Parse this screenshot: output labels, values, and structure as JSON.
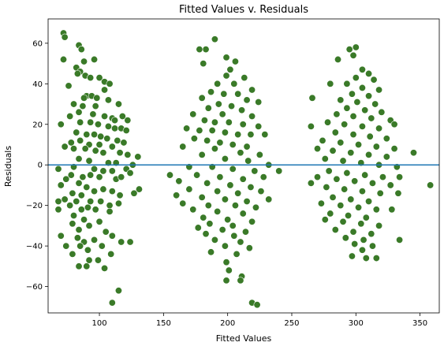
{
  "chart_data": {
    "type": "scatter",
    "title": "Fitted Values v. Residuals",
    "xlabel": "Fitted Values",
    "ylabel": "Residuals",
    "xlim": [
      60,
      365
    ],
    "ylim": [
      -73,
      72
    ],
    "xticks": [
      100,
      150,
      200,
      250,
      300,
      350
    ],
    "yticks": [
      -60,
      -40,
      -20,
      0,
      20,
      40,
      60
    ],
    "grid": false,
    "reference_line": {
      "y": 0,
      "color": "#1f77b4"
    },
    "point_color": "#3a7a28",
    "point_edge": "#ffffff",
    "series": [
      {
        "points": [
          [
            72,
            65
          ],
          [
            73,
            63
          ],
          [
            84,
            59
          ],
          [
            86,
            57
          ],
          [
            72,
            52
          ],
          [
            88,
            51
          ],
          [
            96,
            52
          ],
          [
            82,
            48
          ],
          [
            85,
            46
          ],
          [
            83,
            45
          ],
          [
            89,
            44
          ],
          [
            93,
            43
          ],
          [
            100,
            43
          ],
          [
            104,
            41
          ],
          [
            108,
            40
          ],
          [
            76,
            39
          ],
          [
            104,
            37
          ],
          [
            90,
            34
          ],
          [
            94,
            34
          ],
          [
            98,
            33
          ],
          [
            88,
            33
          ],
          [
            107,
            32
          ],
          [
            80,
            30
          ],
          [
            115,
            30
          ],
          [
            87,
            29
          ],
          [
            97,
            29
          ],
          [
            84,
            26
          ],
          [
            95,
            25
          ],
          [
            77,
            24
          ],
          [
            104,
            24
          ],
          [
            118,
            24
          ],
          [
            110,
            23
          ],
          [
            112,
            22
          ],
          [
            122,
            22
          ],
          [
            85,
            21
          ],
          [
            93,
            21
          ],
          [
            99,
            20
          ],
          [
            70,
            20
          ],
          [
            107,
            19
          ],
          [
            112,
            18
          ],
          [
            117,
            18
          ],
          [
            121,
            17
          ],
          [
            82,
            16
          ],
          [
            90,
            15
          ],
          [
            96,
            15
          ],
          [
            101,
            14
          ],
          [
            106,
            13
          ],
          [
            114,
            12
          ],
          [
            119,
            11
          ],
          [
            85,
            12
          ],
          [
            78,
            11
          ],
          [
            92,
            10
          ],
          [
            100,
            10
          ],
          [
            110,
            9
          ],
          [
            73,
            9
          ],
          [
            80,
            8
          ],
          [
            89,
            8
          ],
          [
            97,
            7
          ],
          [
            103,
            6
          ],
          [
            116,
            6
          ],
          [
            122,
            5
          ],
          [
            130,
            4
          ],
          [
            84,
            3
          ],
          [
            92,
            2
          ],
          [
            107,
            1
          ],
          [
            113,
            1
          ],
          [
            126,
            0
          ],
          [
            68,
            -2
          ],
          [
            80,
            -1
          ],
          [
            96,
            -2
          ],
          [
            103,
            -3
          ],
          [
            110,
            -3
          ],
          [
            121,
            -2
          ],
          [
            124,
            -4
          ],
          [
            78,
            -5
          ],
          [
            87,
            -6
          ],
          [
            93,
            -5
          ],
          [
            100,
            -6
          ],
          [
            113,
            -7
          ],
          [
            117,
            -6
          ],
          [
            74,
            -7
          ],
          [
            84,
            -9
          ],
          [
            70,
            -10
          ],
          [
            90,
            -11
          ],
          [
            103,
            -12
          ],
          [
            96,
            -13
          ],
          [
            110,
            -13
          ],
          [
            131,
            -12
          ],
          [
            79,
            -14
          ],
          [
            86,
            -15
          ],
          [
            116,
            -15
          ],
          [
            127,
            -14
          ],
          [
            73,
            -17
          ],
          [
            82,
            -18
          ],
          [
            93,
            -18
          ],
          [
            101,
            -18
          ],
          [
            68,
            -18
          ],
          [
            115,
            -19
          ],
          [
            77,
            -20
          ],
          [
            91,
            -21
          ],
          [
            108,
            -20
          ],
          [
            68,
            -22
          ],
          [
            86,
            -22
          ],
          [
            97,
            -22
          ],
          [
            108,
            -23
          ],
          [
            80,
            -25
          ],
          [
            88,
            -27
          ],
          [
            100,
            -28
          ],
          [
            79,
            -29
          ],
          [
            84,
            -32
          ],
          [
            92,
            -30
          ],
          [
            105,
            -33
          ],
          [
            70,
            -35
          ],
          [
            83,
            -36
          ],
          [
            110,
            -35
          ],
          [
            96,
            -37
          ],
          [
            88,
            -38
          ],
          [
            117,
            -38
          ],
          [
            124,
            -38
          ],
          [
            74,
            -40
          ],
          [
            85,
            -40
          ],
          [
            102,
            -40
          ],
          [
            91,
            -42
          ],
          [
            79,
            -44
          ],
          [
            109,
            -44
          ],
          [
            92,
            -47
          ],
          [
            99,
            -47
          ],
          [
            84,
            -50
          ],
          [
            90,
            -50
          ],
          [
            104,
            -51
          ],
          [
            115,
            -62
          ],
          [
            110,
            -68
          ],
          [
            190,
            62
          ],
          [
            183,
            57
          ],
          [
            178,
            57
          ],
          [
            199,
            53
          ],
          [
            206,
            51
          ],
          [
            181,
            50
          ],
          [
            202,
            47
          ],
          [
            199,
            44
          ],
          [
            213,
            43
          ],
          [
            192,
            40
          ],
          [
            205,
            40
          ],
          [
            219,
            37
          ],
          [
            187,
            36
          ],
          [
            197,
            35
          ],
          [
            208,
            35
          ],
          [
            180,
            33
          ],
          [
            215,
            32
          ],
          [
            224,
            31
          ],
          [
            193,
            30
          ],
          [
            203,
            29
          ],
          [
            185,
            28
          ],
          [
            211,
            27
          ],
          [
            173,
            25
          ],
          [
            196,
            25
          ],
          [
            219,
            24
          ],
          [
            182,
            22
          ],
          [
            190,
            21
          ],
          [
            201,
            21
          ],
          [
            212,
            20
          ],
          [
            224,
            19
          ],
          [
            168,
            18
          ],
          [
            178,
            17
          ],
          [
            188,
            17
          ],
          [
            198,
            16
          ],
          [
            208,
            15
          ],
          [
            218,
            15
          ],
          [
            229,
            15
          ],
          [
            174,
            13
          ],
          [
            184,
            12
          ],
          [
            194,
            11
          ],
          [
            204,
            10
          ],
          [
            215,
            9
          ],
          [
            165,
            9
          ],
          [
            190,
            8
          ],
          [
            210,
            6
          ],
          [
            225,
            5
          ],
          [
            180,
            5
          ],
          [
            198,
            3
          ],
          [
            216,
            2
          ],
          [
            232,
            0
          ],
          [
            170,
            -1
          ],
          [
            188,
            -1
          ],
          [
            204,
            -2
          ],
          [
            221,
            -3
          ],
          [
            240,
            -3
          ],
          [
            155,
            -5
          ],
          [
            176,
            -5
          ],
          [
            194,
            -6
          ],
          [
            212,
            -7
          ],
          [
            228,
            -6
          ],
          [
            162,
            -8
          ],
          [
            184,
            -9
          ],
          [
            202,
            -10
          ],
          [
            218,
            -11
          ],
          [
            170,
            -12
          ],
          [
            192,
            -13
          ],
          [
            208,
            -14
          ],
          [
            226,
            -13
          ],
          [
            160,
            -15
          ],
          [
            180,
            -16
          ],
          [
            198,
            -17
          ],
          [
            215,
            -18
          ],
          [
            232,
            -17
          ],
          [
            165,
            -19
          ],
          [
            185,
            -20
          ],
          [
            206,
            -20
          ],
          [
            222,
            -21
          ],
          [
            173,
            -22
          ],
          [
            192,
            -23
          ],
          [
            212,
            -24
          ],
          [
            181,
            -26
          ],
          [
            200,
            -27
          ],
          [
            219,
            -28
          ],
          [
            186,
            -29
          ],
          [
            204,
            -30
          ],
          [
            177,
            -31
          ],
          [
            196,
            -32
          ],
          [
            214,
            -33
          ],
          [
            183,
            -34
          ],
          [
            205,
            -35
          ],
          [
            190,
            -37
          ],
          [
            210,
            -38
          ],
          [
            198,
            -40
          ],
          [
            217,
            -41
          ],
          [
            187,
            -43
          ],
          [
            207,
            -44
          ],
          [
            199,
            -48
          ],
          [
            201,
            -52
          ],
          [
            211,
            -55
          ],
          [
            199,
            -57
          ],
          [
            210,
            -57
          ],
          [
            219,
            -68
          ],
          [
            223,
            -69
          ],
          [
            300,
            58
          ],
          [
            295,
            57
          ],
          [
            298,
            54
          ],
          [
            286,
            52
          ],
          [
            305,
            47
          ],
          [
            310,
            45
          ],
          [
            300,
            43
          ],
          [
            314,
            42
          ],
          [
            293,
            40
          ],
          [
            280,
            40
          ],
          [
            305,
            38
          ],
          [
            318,
            37
          ],
          [
            297,
            35
          ],
          [
            310,
            34
          ],
          [
            288,
            32
          ],
          [
            266,
            33
          ],
          [
            301,
            31
          ],
          [
            315,
            30
          ],
          [
            293,
            28
          ],
          [
            307,
            27
          ],
          [
            320,
            26
          ],
          [
            285,
            25
          ],
          [
            298,
            24
          ],
          [
            312,
            23
          ],
          [
            327,
            22
          ],
          [
            278,
            21
          ],
          [
            291,
            20
          ],
          [
            305,
            19
          ],
          [
            318,
            18
          ],
          [
            265,
            19
          ],
          [
            284,
            16
          ],
          [
            298,
            15
          ],
          [
            311,
            14
          ],
          [
            324,
            13
          ],
          [
            274,
            12
          ],
          [
            288,
            11
          ],
          [
            302,
            10
          ],
          [
            316,
            9
          ],
          [
            330,
            8
          ],
          [
            270,
            8
          ],
          [
            282,
            7
          ],
          [
            296,
            6
          ],
          [
            310,
            5
          ],
          [
            324,
            4
          ],
          [
            345,
            6
          ],
          [
            276,
            3
          ],
          [
            290,
            2
          ],
          [
            304,
            1
          ],
          [
            318,
            0
          ],
          [
            332,
            -1
          ],
          [
            279,
            -3
          ],
          [
            293,
            -4
          ],
          [
            307,
            -5
          ],
          [
            321,
            -6
          ],
          [
            270,
            -6
          ],
          [
            285,
            -7
          ],
          [
            299,
            -8
          ],
          [
            313,
            -9
          ],
          [
            327,
            -10
          ],
          [
            265,
            -9
          ],
          [
            277,
            -11
          ],
          [
            291,
            -12
          ],
          [
            305,
            -13
          ],
          [
            319,
            -14
          ],
          [
            333,
            -14
          ],
          [
            282,
            -16
          ],
          [
            296,
            -17
          ],
          [
            310,
            -18
          ],
          [
            273,
            -19
          ],
          [
            288,
            -20
          ],
          [
            302,
            -21
          ],
          [
            316,
            -22
          ],
          [
            328,
            -22
          ],
          [
            280,
            -24
          ],
          [
            294,
            -25
          ],
          [
            308,
            -26
          ],
          [
            276,
            -27
          ],
          [
            290,
            -28
          ],
          [
            304,
            -29
          ],
          [
            318,
            -30
          ],
          [
            284,
            -32
          ],
          [
            298,
            -33
          ],
          [
            312,
            -34
          ],
          [
            292,
            -36
          ],
          [
            306,
            -37
          ],
          [
            334,
            -37
          ],
          [
            299,
            -39
          ],
          [
            313,
            -40
          ],
          [
            305,
            -42
          ],
          [
            297,
            -45
          ],
          [
            308,
            -46
          ],
          [
            316,
            -46
          ],
          [
            358,
            -10
          ],
          [
            334,
            -6
          ],
          [
            330,
            20
          ]
        ]
      }
    ]
  }
}
